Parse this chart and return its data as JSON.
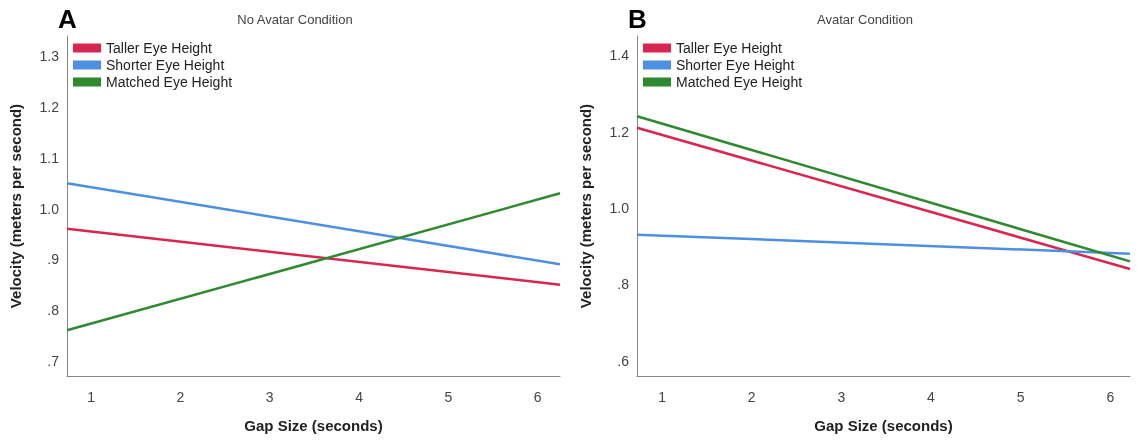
{
  "chart_data": [
    {
      "type": "line",
      "title": "No Avatar Condition",
      "annotations": [
        "A"
      ],
      "xlabel": "Gap Size (seconds)",
      "ylabel": "Velocity (meters per second)",
      "x": [
        0.73,
        6.25
      ],
      "series": [
        {
          "name": "Taller Eye Height",
          "color": "#d9264f",
          "values": [
            0.96,
            0.85
          ]
        },
        {
          "name": "Shorter Eye Height",
          "color": "#4d8fe0",
          "values": [
            1.05,
            0.89
          ]
        },
        {
          "name": "Matched Eye Height",
          "color": "#2f8a2f",
          "values": [
            0.76,
            1.03
          ]
        }
      ],
      "xlim": [
        0.73,
        6.25
      ],
      "xticks": [
        1,
        2,
        3,
        4,
        5,
        6
      ],
      "ylim": [
        0.67,
        1.34
      ],
      "yticks": [
        {
          "value": 0.7,
          "label": ".7"
        },
        {
          "value": 0.8,
          "label": ".8"
        },
        {
          "value": 0.9,
          "label": ".9"
        },
        {
          "value": 1.0,
          "label": "1.0"
        },
        {
          "value": 1.1,
          "label": "1.1"
        },
        {
          "value": 1.2,
          "label": "1.2"
        },
        {
          "value": 1.3,
          "label": "1.3"
        }
      ],
      "grid": false,
      "legend": "top left",
      "marker": "none",
      "line_style": "solid"
    },
    {
      "type": "line",
      "title": "Avatar Condition",
      "annotations": [
        "B"
      ],
      "xlabel": "Gap Size (seconds)",
      "ylabel": "Velocity (meters per second)",
      "x": [
        0.72,
        6.22
      ],
      "series": [
        {
          "name": "Taller Eye Height",
          "color": "#d9264f",
          "values": [
            1.21,
            0.84
          ]
        },
        {
          "name": "Shorter Eye Height",
          "color": "#4d8fe0",
          "values": [
            0.93,
            0.88
          ]
        },
        {
          "name": "Matched Eye Height",
          "color": "#2f8a2f",
          "values": [
            1.24,
            0.86
          ]
        }
      ],
      "xlim": [
        0.72,
        6.22
      ],
      "xticks": [
        1,
        2,
        3,
        4,
        5,
        6
      ],
      "ylim": [
        0.56,
        1.45
      ],
      "yticks": [
        {
          "value": 0.6,
          "label": ".6"
        },
        {
          "value": 0.8,
          "label": ".8"
        },
        {
          "value": 1.0,
          "label": "1.0"
        },
        {
          "value": 1.2,
          "label": "1.2"
        },
        {
          "value": 1.4,
          "label": "1.4"
        }
      ],
      "grid": false,
      "legend": "top left",
      "marker": "none",
      "line_style": "solid"
    }
  ]
}
